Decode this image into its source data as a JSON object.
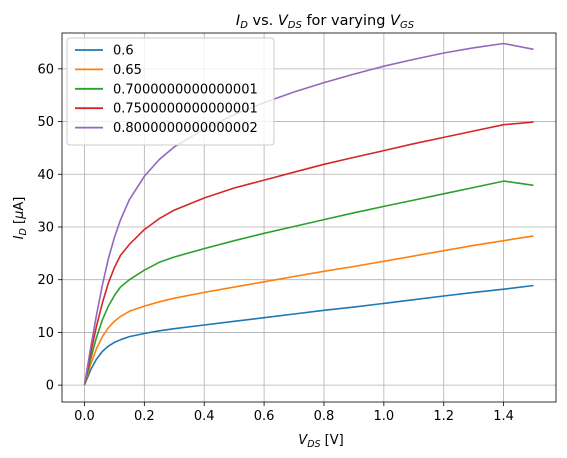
{
  "chart_data": {
    "type": "line",
    "title_prefix": "I",
    "title_prefix_sub": "D",
    "title_mid": " vs. ",
    "title_v": "V",
    "title_v_sub": "DS",
    "title_rest": " for varying ",
    "title_v2": "V",
    "title_v2_sub": "GS",
    "xlabel_main": "V",
    "xlabel_sub": "DS",
    "xlabel_unit": " [V]",
    "ylabel_main": "I",
    "ylabel_sub": "D",
    "ylabel_unit_open": " [",
    "ylabel_unit_mu": "μ",
    "ylabel_unit_close": "A]",
    "xlim": [
      -0.075,
      1.575
    ],
    "ylim": [
      -3.2,
      66.8
    ],
    "xticks": [
      0.0,
      0.2,
      0.4,
      0.6,
      0.8,
      1.0,
      1.2,
      1.4
    ],
    "xtick_labels": [
      "0.0",
      "0.2",
      "0.4",
      "0.6",
      "0.8",
      "1.0",
      "1.2",
      "1.4"
    ],
    "yticks": [
      0,
      10,
      20,
      30,
      40,
      50,
      60
    ],
    "ytick_labels": [
      "0",
      "10",
      "20",
      "30",
      "40",
      "50",
      "60"
    ],
    "grid": true,
    "legend_position": "upper-left",
    "x": [
      0,
      0.02,
      0.04,
      0.06,
      0.08,
      0.1,
      0.12,
      0.15,
      0.2,
      0.25,
      0.3,
      0.4,
      0.5,
      0.6,
      0.7,
      0.8,
      0.9,
      1.0,
      1.1,
      1.2,
      1.3,
      1.4,
      1.5
    ],
    "series": [
      {
        "name": "0.6",
        "color": "#1f77b4",
        "values": [
          0,
          2.8,
          4.9,
          6.4,
          7.4,
          8.1,
          8.6,
          9.2,
          9.8,
          10.3,
          10.7,
          11.4,
          12.1,
          12.8,
          13.5,
          14.2,
          14.8,
          15.5,
          16.2,
          16.9,
          17.6,
          18.2,
          18.9
        ]
      },
      {
        "name": "0.65",
        "color": "#ff7f0e",
        "values": [
          0,
          3.8,
          6.9,
          9.2,
          10.9,
          12.1,
          13.0,
          14.0,
          15.0,
          15.8,
          16.5,
          17.6,
          18.6,
          19.6,
          20.6,
          21.6,
          22.5,
          23.5,
          24.5,
          25.5,
          26.5,
          27.4,
          28.3
        ]
      },
      {
        "name": "0.7000000000000001",
        "color": "#2ca02c",
        "values": [
          0,
          4.8,
          9.0,
          12.4,
          15.0,
          17.0,
          18.6,
          20.0,
          21.8,
          23.3,
          24.3,
          25.9,
          27.4,
          28.8,
          30.1,
          31.4,
          32.7,
          33.9,
          35.1,
          36.3,
          37.5,
          38.7,
          37.9
        ]
      },
      {
        "name": "0.7500000000000001",
        "color": "#d62728",
        "values": [
          0,
          5.8,
          11.1,
          15.6,
          19.4,
          22.3,
          24.6,
          26.7,
          29.5,
          31.6,
          33.2,
          35.5,
          37.4,
          38.9,
          40.4,
          41.9,
          43.2,
          44.5,
          45.8,
          47.0,
          48.2,
          49.4,
          49.9
        ]
      },
      {
        "name": "0.8000000000000002",
        "color": "#9467bd",
        "values": [
          0,
          6.8,
          13.2,
          19.0,
          24.0,
          28.0,
          31.3,
          35.2,
          39.6,
          42.8,
          45.2,
          48.6,
          51.3,
          53.6,
          55.6,
          57.4,
          59.0,
          60.5,
          61.8,
          63.0,
          64.0,
          64.8,
          63.7
        ]
      }
    ]
  }
}
